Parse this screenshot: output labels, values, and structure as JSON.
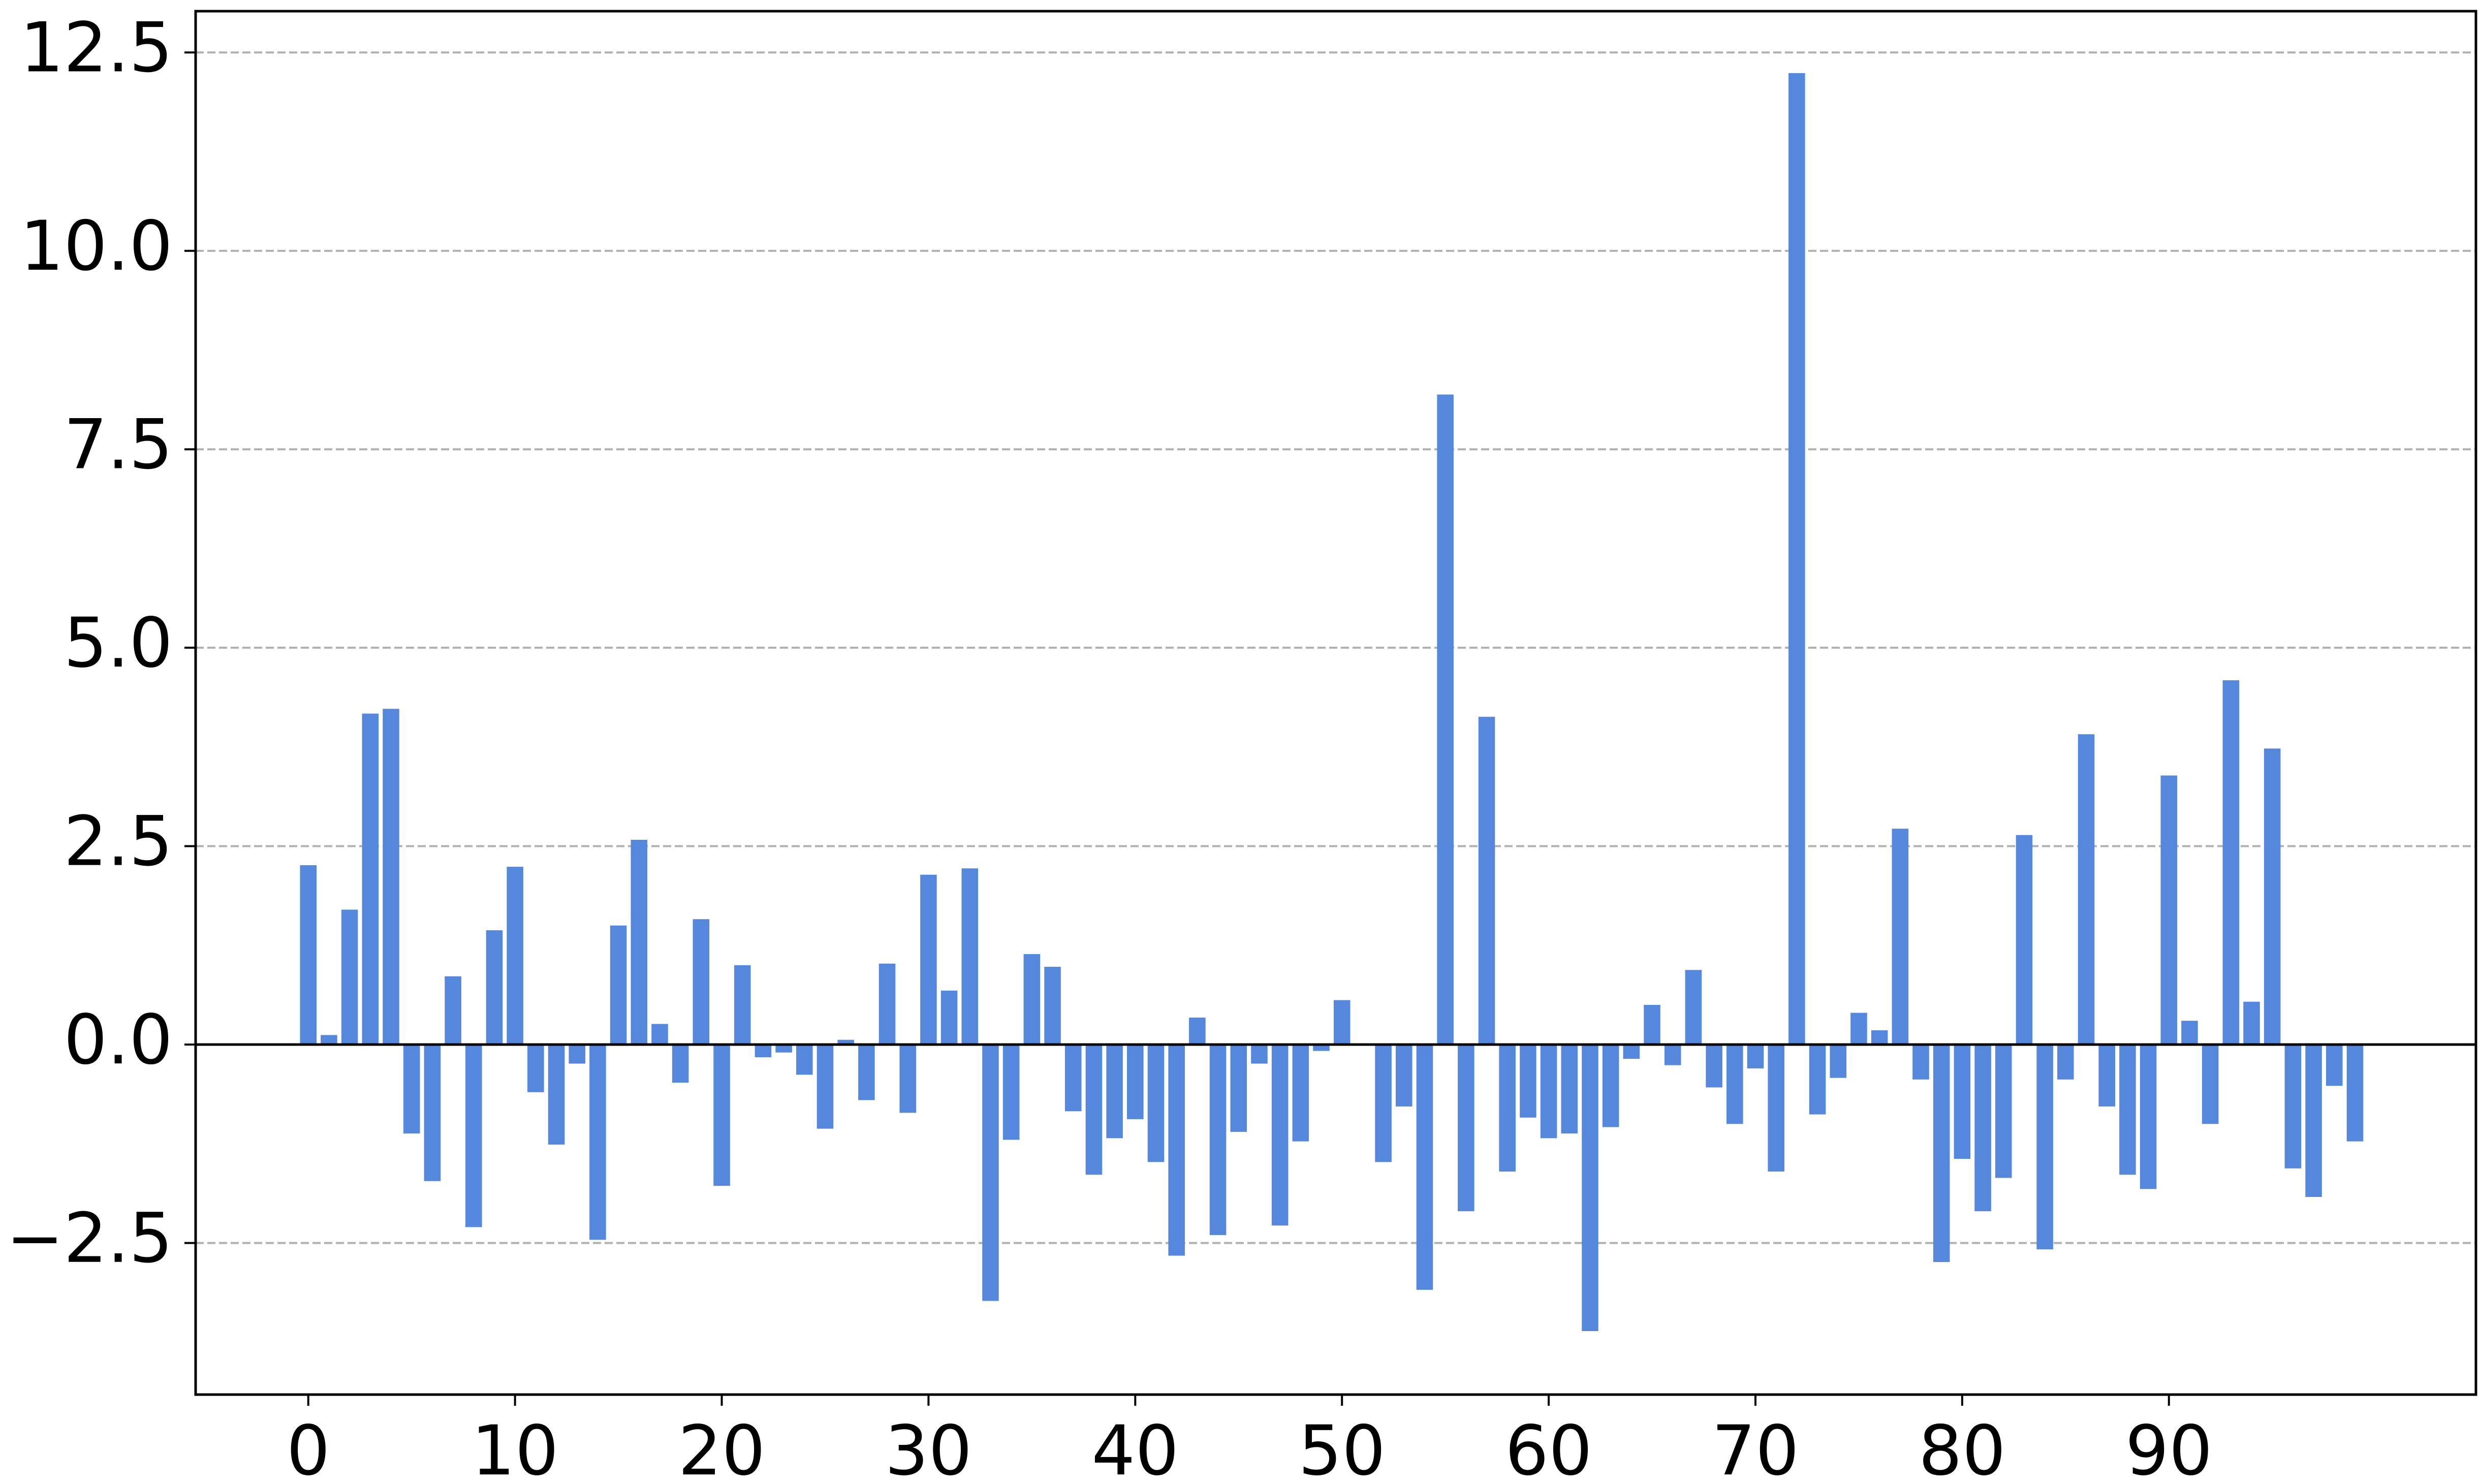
{
  "chart_data": {
    "type": "bar",
    "x": [
      0,
      1,
      2,
      3,
      4,
      5,
      6,
      7,
      8,
      9,
      10,
      11,
      12,
      13,
      14,
      15,
      16,
      17,
      18,
      19,
      20,
      21,
      22,
      23,
      24,
      25,
      26,
      27,
      28,
      29,
      30,
      31,
      32,
      33,
      34,
      35,
      36,
      37,
      38,
      39,
      40,
      41,
      42,
      43,
      44,
      45,
      46,
      47,
      48,
      49,
      50,
      51,
      52,
      53,
      54,
      55,
      56,
      57,
      58,
      59,
      60,
      61,
      62,
      63,
      64,
      65,
      66,
      67,
      68,
      69,
      70,
      71,
      72,
      73,
      74,
      75,
      76,
      77,
      78,
      79,
      80,
      81,
      82,
      83,
      84,
      85,
      86,
      87,
      88,
      89,
      90,
      91,
      92,
      93,
      94,
      95,
      96,
      97,
      98,
      99
    ],
    "values": [
      2.26,
      0.12,
      1.7,
      4.17,
      4.23,
      -1.12,
      -1.72,
      0.86,
      -2.3,
      1.44,
      2.24,
      -0.6,
      -1.26,
      -0.24,
      -2.46,
      1.5,
      2.58,
      0.26,
      -0.48,
      1.58,
      -1.78,
      1.0,
      -0.16,
      -0.1,
      -0.38,
      -1.06,
      0.06,
      -0.7,
      1.02,
      -0.86,
      2.14,
      0.68,
      2.22,
      -3.23,
      -1.2,
      1.14,
      0.98,
      -0.84,
      -1.64,
      -1.18,
      -0.94,
      -1.48,
      -2.66,
      0.34,
      -2.4,
      -1.1,
      -0.24,
      -2.28,
      -1.22,
      -0.08,
      0.56,
      0.0,
      -1.48,
      -0.78,
      -3.09,
      8.19,
      -2.1,
      4.13,
      -1.6,
      -0.92,
      -1.18,
      -1.12,
      -3.61,
      -1.04,
      -0.18,
      0.5,
      -0.26,
      0.94,
      -0.54,
      -1.0,
      -0.3,
      -1.6,
      12.24,
      -0.88,
      -0.42,
      0.4,
      0.18,
      2.72,
      -0.44,
      -2.74,
      -1.44,
      -2.1,
      -1.68,
      2.64,
      -2.58,
      -0.44,
      3.91,
      -0.78,
      -1.64,
      -1.82,
      3.39,
      0.3,
      -1.0,
      4.59,
      0.54,
      3.73,
      -1.56,
      -1.92,
      -0.52,
      -1.22
    ],
    "color": "#5588dd",
    "xlim": [
      -5.45,
      104.85
    ],
    "xticks": [
      0,
      10,
      20,
      30,
      40,
      50,
      60,
      70,
      80,
      90
    ],
    "ylim": [
      -4.41,
      13.02
    ],
    "yticks": [
      {
        "value": -2.5,
        "label": "−2.5"
      },
      {
        "value": 0,
        "label": "0.0"
      },
      2.5,
      {
        "value": 5,
        "label": "5.0"
      },
      7.5,
      {
        "value": 10,
        "label": "10.0"
      },
      12.5
    ],
    "grid": true
  }
}
